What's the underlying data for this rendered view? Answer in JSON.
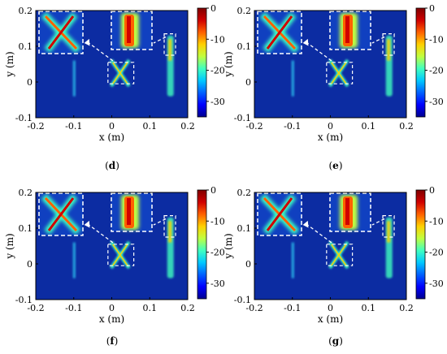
{
  "colors": {
    "background": "#0a2a9c",
    "colormap": [
      "#00008f",
      "#0000ff",
      "#0060ff",
      "#00c8ff",
      "#40ffc0",
      "#c0ff40",
      "#ffd000",
      "#ff6000",
      "#d00000",
      "#800000"
    ],
    "inset_border": "#ffffff"
  },
  "chart_data": [
    {
      "type": "heatmap",
      "panel_label": "d",
      "xlabel": "x (m)",
      "ylabel": "y (m)",
      "xlim": [
        -0.2,
        0.2
      ],
      "ylim": [
        -0.1,
        0.2
      ],
      "x_ticks": [
        -0.2,
        -0.1,
        0,
        0.1,
        0.2
      ],
      "y_ticks": [
        -0.1,
        0,
        0.1,
        0.2
      ],
      "colorbar_range": [
        -35,
        0
      ],
      "colorbar_ticks": [
        0,
        -10,
        -20,
        -30
      ],
      "grid": false
    },
    {
      "type": "heatmap",
      "panel_label": "e",
      "xlabel": "x (m)",
      "ylabel": "y (m)",
      "xlim": [
        -0.2,
        0.2
      ],
      "ylim": [
        -0.1,
        0.2
      ],
      "x_ticks": [
        -0.2,
        -0.1,
        0,
        0.1,
        0.2
      ],
      "y_ticks": [
        -0.1,
        0,
        0.1,
        0.2
      ],
      "colorbar_range": [
        -35,
        0
      ],
      "colorbar_ticks": [
        0,
        -10,
        -20,
        -30
      ],
      "grid": false
    },
    {
      "type": "heatmap",
      "panel_label": "f",
      "xlabel": "x (m)",
      "ylabel": "y (m)",
      "xlim": [
        -0.2,
        0.2
      ],
      "ylim": [
        -0.1,
        0.2
      ],
      "x_ticks": [
        -0.2,
        -0.1,
        0,
        0.1,
        0.2
      ],
      "y_ticks": [
        -0.1,
        0,
        0.1,
        0.2
      ],
      "colorbar_range": [
        -35,
        0
      ],
      "colorbar_ticks": [
        0,
        -10,
        -20,
        -30
      ],
      "grid": false
    },
    {
      "type": "heatmap",
      "panel_label": "g",
      "xlabel": "x (m)",
      "ylabel": "y (m)",
      "xlim": [
        -0.2,
        0.2
      ],
      "ylim": [
        -0.1,
        0.2
      ],
      "x_ticks": [
        -0.2,
        -0.1,
        0,
        0.1,
        0.2
      ],
      "y_ticks": [
        -0.1,
        0,
        0.1,
        0.2
      ],
      "colorbar_range": [
        -35,
        0
      ],
      "colorbar_ticks": [
        0,
        -10,
        -20,
        -30
      ],
      "grid": false
    }
  ]
}
